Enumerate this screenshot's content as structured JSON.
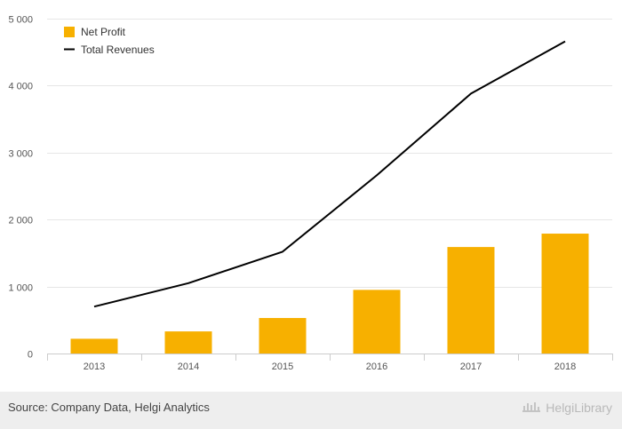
{
  "chart_data": {
    "type": "bar",
    "categories": [
      "2013",
      "2014",
      "2015",
      "2016",
      "2017",
      "2018"
    ],
    "series": [
      {
        "name": "Net Profit",
        "type": "bar",
        "color": "#f7b000",
        "values": [
          220,
          330,
          530,
          950,
          1590,
          1790
        ]
      },
      {
        "name": "Total Revenues",
        "type": "line",
        "color": "#000000",
        "values": [
          700,
          1050,
          1520,
          2660,
          3880,
          4660
        ]
      }
    ],
    "ylim": [
      0,
      5000
    ],
    "yticks": [
      0,
      1000,
      2000,
      3000,
      4000,
      5000
    ],
    "ytick_labels": [
      "0",
      "1 000",
      "2 000",
      "3 000",
      "4 000",
      "5 000"
    ],
    "grid": true,
    "legend_position": "top-left"
  },
  "footer": {
    "source": "Source: Company Data, Helgi Analytics",
    "brand": "HelgiLibrary"
  },
  "icons": {
    "brand_logo": "helgi-library-logo-icon"
  }
}
